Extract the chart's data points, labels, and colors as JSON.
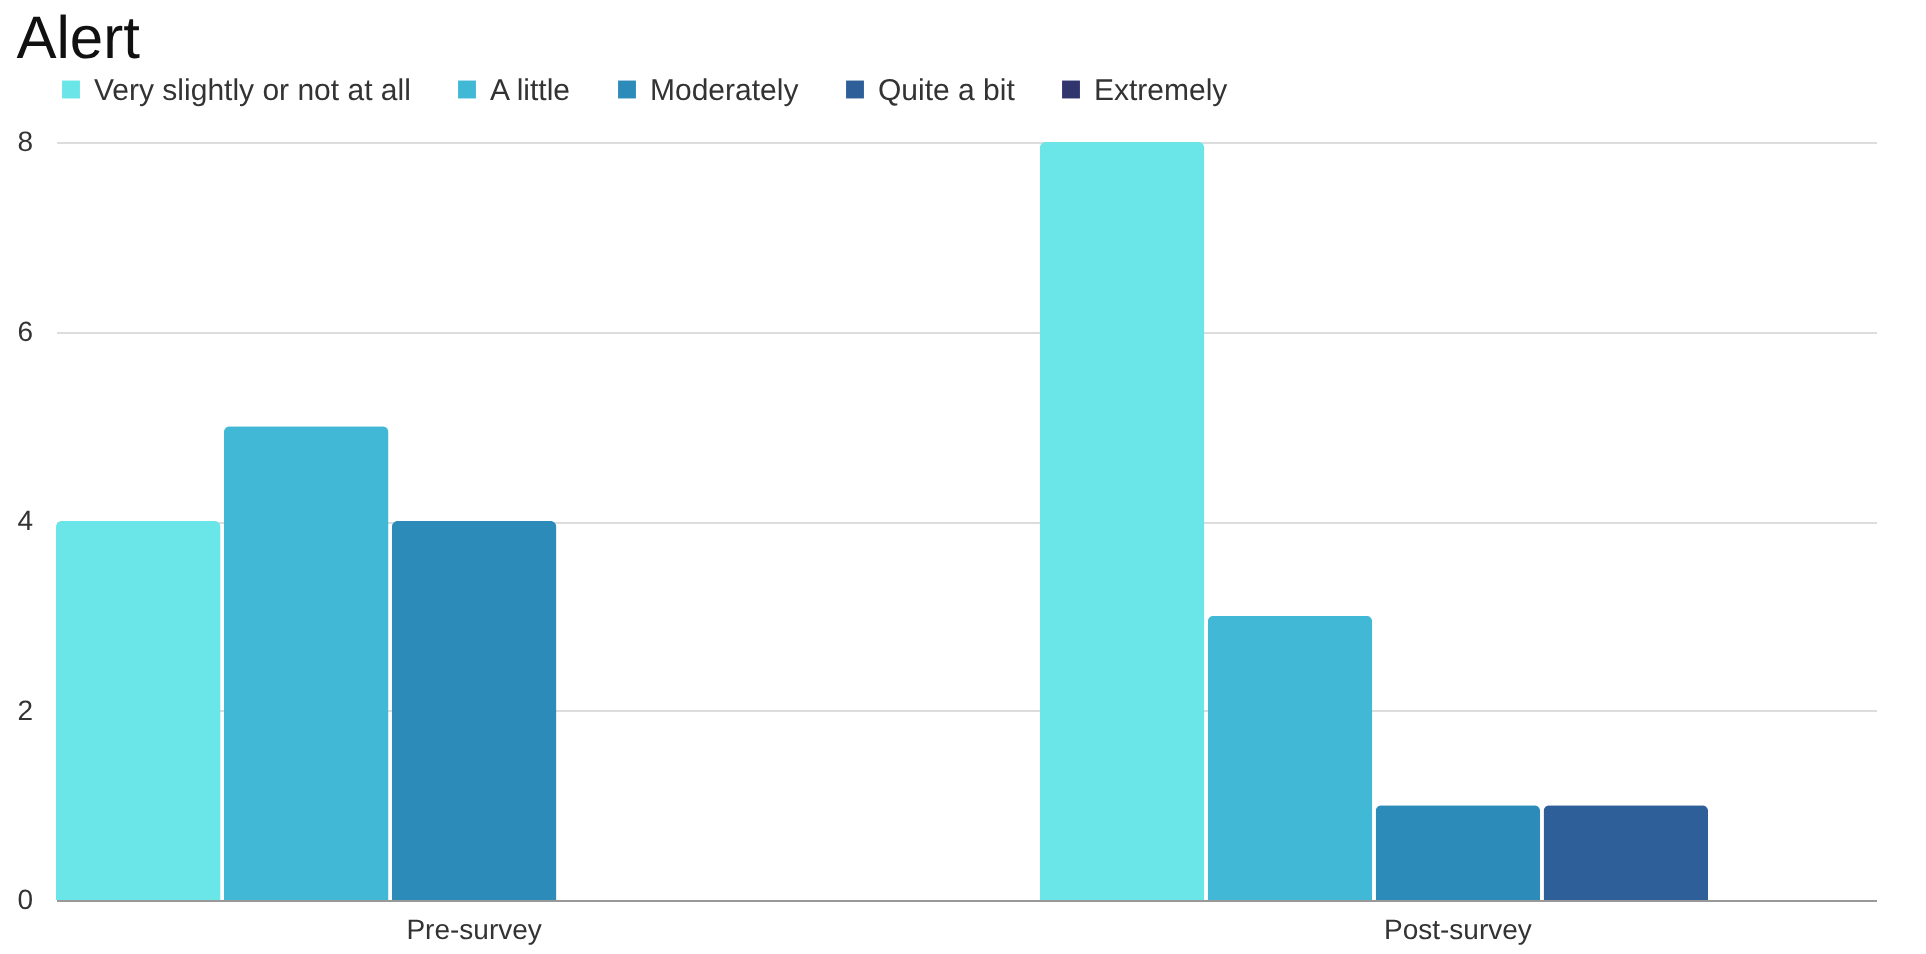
{
  "chart_data": {
    "type": "bar",
    "title": "Alert",
    "categories": [
      "Pre-survey",
      "Post-survey"
    ],
    "series": [
      {
        "name": "Very slightly or not at all",
        "color": "#6ae5e8",
        "values": [
          4,
          8
        ]
      },
      {
        "name": "A little",
        "color": "#41b8d5",
        "values": [
          5,
          3
        ]
      },
      {
        "name": "Moderately",
        "color": "#2d8bba",
        "values": [
          4,
          1
        ]
      },
      {
        "name": "Quite a bit",
        "color": "#2f5f98",
        "values": [
          0,
          1
        ]
      },
      {
        "name": "Extremely",
        "color": "#31356e",
        "values": [
          0,
          0
        ]
      }
    ],
    "ylim": [
      0,
      8
    ],
    "yticks": [
      0,
      2,
      4,
      6,
      8
    ],
    "grid": "y",
    "legend": "top"
  }
}
